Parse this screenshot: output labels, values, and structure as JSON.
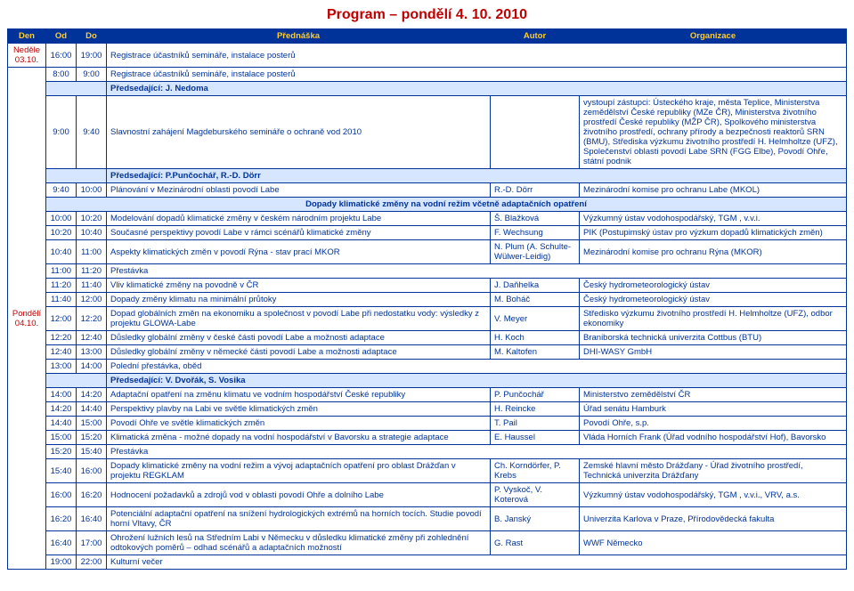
{
  "title": "Program – pondělí 4. 10. 2010",
  "colors": {
    "header_bg": "#003399",
    "header_fg": "#ffcc33",
    "border": "#003399",
    "text": "#003399",
    "title": "#c00000",
    "chair_bg": "#d6e6ff",
    "day_text": "#c00000"
  },
  "header": {
    "den": "Den",
    "od": "Od",
    "do": "Do",
    "prednaska": "Přednáška",
    "autor": "Autor",
    "organizace": "Organizace"
  },
  "days": {
    "nedele": {
      "line1": "Neděle",
      "line2": "03.10."
    },
    "pondeli": {
      "line1": "Pondělí",
      "line2": "04.10."
    }
  },
  "r1": {
    "od": "16:00",
    "do": "19:00",
    "p": "Registrace účastníků semináře, instalace posterů"
  },
  "r2": {
    "od": "8:00",
    "do": "9:00",
    "p": "Registrace účastníků semináře, instalace posterů"
  },
  "chair1": "Předsedající: J. Nedoma",
  "r3": {
    "od": "9:00",
    "do": "9:40",
    "p": "Slavnostní zahájení Magdeburského semináře o ochraně vod 2010",
    "org": "vystoupí zástupci: Ústeckého kraje, města Teplice, Ministerstva zemědělství České republiky (MZe ČR), Ministerstva životního prostředí České republiky (MŽP ČR), Spolkového ministerstva životního prostředí, ochrany přírody a bezpečnosti reaktorů SRN (BMU), Střediska výzkumu životního prostředí H. Helmholtze (UFZ), Společenství oblasti povodí Labe SRN (FGG Elbe), Povodí Ohře, státní podnik"
  },
  "chair2": "Předsedající: P.Punčochář, R.-D. Dörr",
  "r4": {
    "od": "9:40",
    "do": "10:00",
    "p": "Plánování v Mezinárodní oblasti povodí Labe",
    "a": "R.-D. Dörr",
    "org": "Mezinárodní komise pro ochranu Labe (MKOL)"
  },
  "section1": "Dopady klimatické změny na vodní režim včetně adaptačních opatření",
  "r5": {
    "od": "10:00",
    "do": "10:20",
    "p": "Modelování dopadů klimatické změny v českém národním projektu Labe",
    "a": "Š. Blažková",
    "org": "Výzkumný ústav vodohospodářský, TGM , v.v.i."
  },
  "r6": {
    "od": "10:20",
    "do": "10:40",
    "p": "Současné perspektivy povodí Labe v rámci scénářů klimatické změny",
    "a": "F. Wechsung",
    "org": "PIK (Postupimský ústav pro výzkum dopadů klimatických změn)"
  },
  "r7": {
    "od": "10:40",
    "do": "11:00",
    "p": "Aspekty klimatických změn v povodí Rýna - stav prací MKOR",
    "a": "N. Plum (A. Schulte-Wülwer-Leidig)",
    "org": "Mezinárodní komise pro ochranu Rýna (MKOR)"
  },
  "r8": {
    "od": "11:00",
    "do": "11:20",
    "p": "Přestávka"
  },
  "r9": {
    "od": "11:20",
    "do": "11:40",
    "p": "Vliv klimatické změny na povodně v ČR",
    "a": "J. Daňhelka",
    "org": "Český hydrometeorologický ústav"
  },
  "r10": {
    "od": "11:40",
    "do": "12:00",
    "p": "Dopady změny klimatu na minimální průtoky",
    "a": "M. Boháč",
    "org": "Český hydrometeorologický ústav"
  },
  "r11": {
    "od": "12:00",
    "do": "12:20",
    "p": "Dopad globálních změn na ekonomiku a společnost v povodí Labe při nedostatku vody: výsledky z projektu GLOWA-Labe",
    "a": "V. Meyer",
    "org": "Středisko výzkumu životního prostředí H. Helmholtze (UFZ), odbor ekonomiky"
  },
  "r12": {
    "od": "12:20",
    "do": "12:40",
    "p": "Důsledky globální změny v české části povodí Labe a možnosti adaptace",
    "a": "H. Koch",
    "org": "Braniborská technická univerzita Cottbus (BTU)"
  },
  "r13": {
    "od": "12:40",
    "do": "13:00",
    "p": "Důsledky globální změny v německé části povodí Labe a možnosti adaptace",
    "a": "M. Kaltofen",
    "org": "DHI-WASY GmbH"
  },
  "r14": {
    "od": "13:00",
    "do": "14:00",
    "p": "Polední přestávka, oběd"
  },
  "chair3": "Předsedající: V. Dvořák, S. Vosika",
  "r15": {
    "od": "14:00",
    "do": "14:20",
    "p": "Adaptační opatření na změnu klimatu ve vodním hospodářství České republiky",
    "a": "P. Punčochář",
    "org": "Ministerstvo zemědělství ČR"
  },
  "r16": {
    "od": "14:20",
    "do": "14:40",
    "p": "Perspektivy plavby na Labi ve světle klimatických změn",
    "a": "H. Reincke",
    "org": "Úřad senátu Hamburk"
  },
  "r17": {
    "od": "14:40",
    "do": "15:00",
    "p": "Povodí Ohře ve světle klimatických změn",
    "a": "T. Pail",
    "org": "Povodí Ohře, s.p."
  },
  "r18": {
    "od": "15:00",
    "do": "15:20",
    "p": "Klimatická změna - možné dopady na vodní hospodářství v Bavorsku a strategie adaptace",
    "a": "E. Haussel",
    "org": "Vláda Horních Frank (Úřad vodního hospodářství Hof), Bavorsko"
  },
  "r19": {
    "od": "15:20",
    "do": "15:40",
    "p": "Přestávka"
  },
  "r20": {
    "od": "15:40",
    "do": "16:00",
    "p": "Dopady klimatické změny na vodní režim a vývoj adaptačních opatření pro oblast Drážďan v projektu REGKLAM",
    "a": "Ch. Korndörfer, P. Krebs",
    "org": "Zemské hlavní město Drážďany - Úřad životního prostředí, Technická univerzita Drážďany"
  },
  "r21": {
    "od": "16:00",
    "do": "16:20",
    "p": "Hodnocení požadavků a zdrojů vod v oblasti povodí Ohře a dolního Labe",
    "a": "P. Vyskoč, V. Koterová",
    "org": "Výzkumný ústav vodohospodářský, TGM , v.v.i., VRV, a.s."
  },
  "r22": {
    "od": "16:20",
    "do": "16:40",
    "p": "Potenciální adaptační opatření na snížení hydrologických extrémů na horních tocích. Studie povodí horní Vltavy, ČR",
    "a": "B. Janský",
    "org": "Univerzita Karlova v Praze, Přírodovědecká fakulta"
  },
  "r23": {
    "od": "16:40",
    "do": "17:00",
    "p": "Ohrožení lužních lesů na Středním Labi v Německu v důsledku klimatické změny při zohlednění odtokových poměrů – odhad scénářů a adaptačních možností",
    "a": "G. Rast",
    "org": "WWF Německo"
  },
  "r24": {
    "od": "19:00",
    "do": "22:00",
    "p": "Kulturní večer"
  }
}
